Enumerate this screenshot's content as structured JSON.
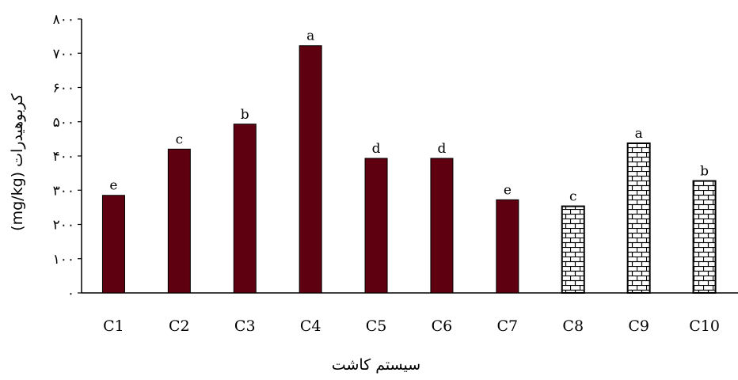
{
  "chart_data": {
    "type": "bar",
    "xlabel": "سیستم کاشت",
    "ylabel": "کربوهیدرات (mg/kg)",
    "ylim": [
      0,
      800
    ],
    "y_ticks": [
      0,
      100,
      200,
      300,
      400,
      500,
      600,
      700,
      800
    ],
    "y_tick_labels": [
      "۰",
      "۱۰۰",
      "۲۰۰",
      "۳۰۰",
      "۴۰۰",
      "۵۰۰",
      "۶۰۰",
      "۷۰۰",
      "۸۰۰"
    ],
    "categories": [
      "C1",
      "C2",
      "C3",
      "C4",
      "C5",
      "C6",
      "C7",
      "C8",
      "C9",
      "C10"
    ],
    "values": [
      285,
      420,
      493,
      722,
      393,
      393,
      272,
      253,
      437,
      327
    ],
    "significance_letters": [
      "e",
      "c",
      "b",
      "a",
      "d",
      "d",
      "e",
      "c",
      "a",
      "b"
    ],
    "bar_fill": [
      "solid",
      "solid",
      "solid",
      "solid",
      "solid",
      "solid",
      "solid",
      "brick",
      "brick",
      "brick"
    ],
    "grid": false,
    "colors": {
      "solid_bar": "#5e000f",
      "brick_stroke": "#000000",
      "brick_background": "#ffffff"
    }
  }
}
